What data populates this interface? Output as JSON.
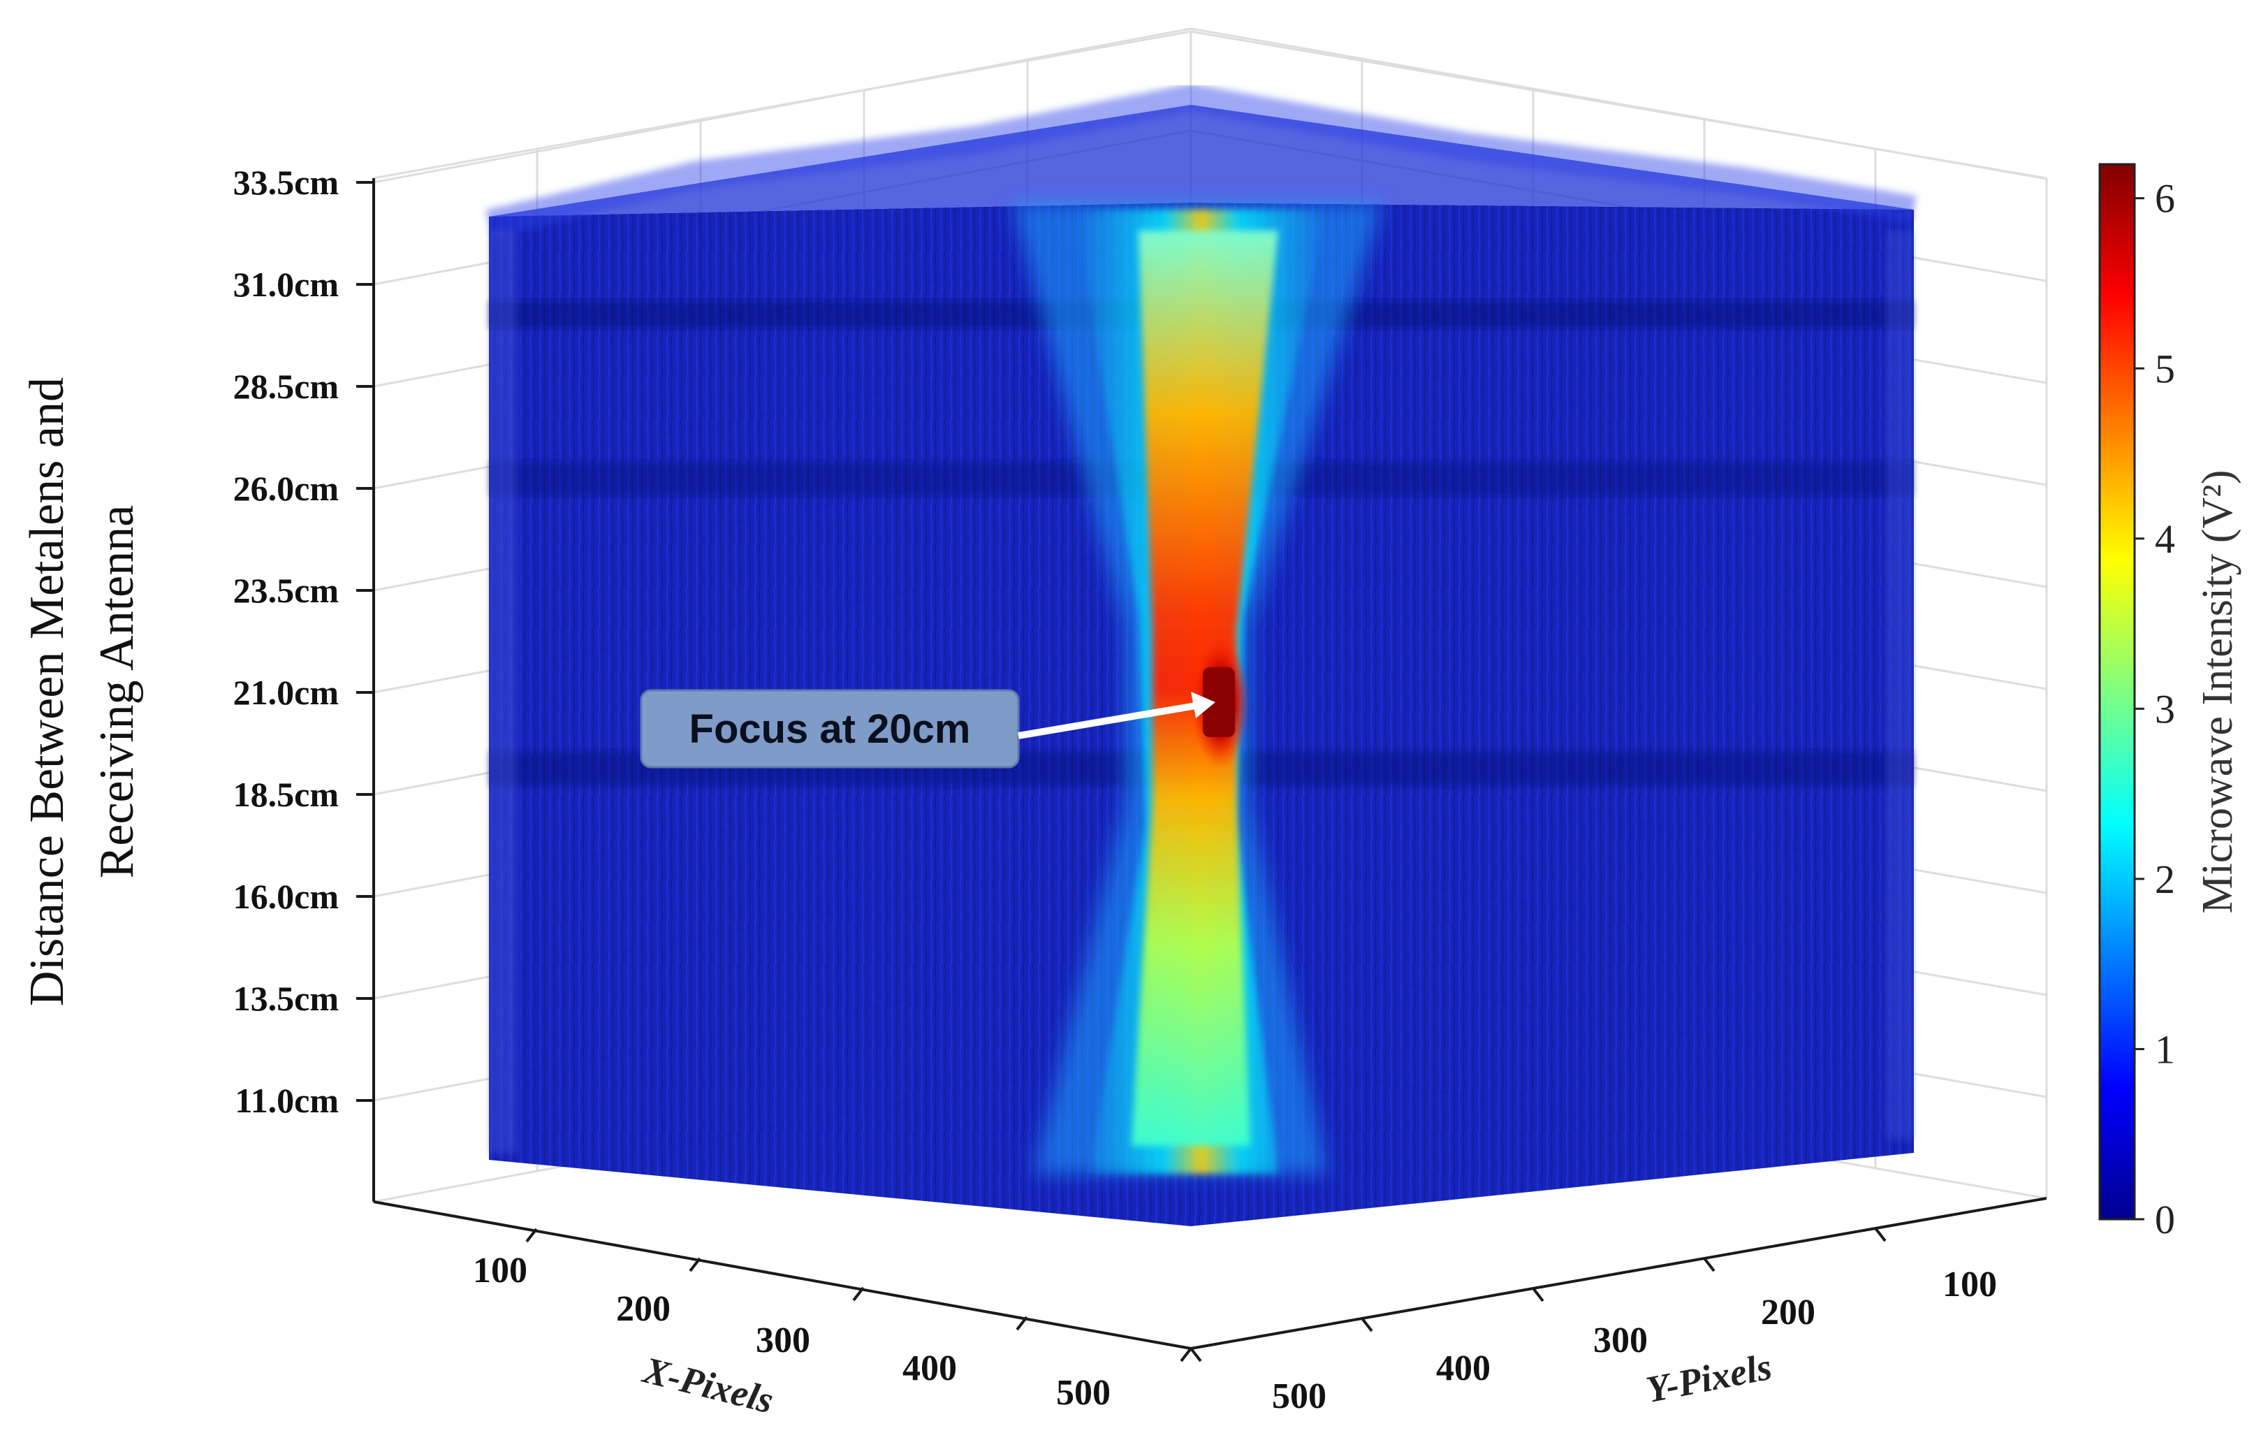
{
  "chart_data": {
    "type": "volume-3d",
    "zlabel_lines": [
      "Distance Between Metalens and",
      "Receiving Antenna"
    ],
    "xlabel": "X-Pixels",
    "ylabel": "Y-Pixels",
    "z_ticks": [
      "11.0cm",
      "13.5cm",
      "16.0cm",
      "18.5cm",
      "21.0cm",
      "23.5cm",
      "26.0cm",
      "28.5cm",
      "31.0cm",
      "33.5cm"
    ],
    "x_ticks": [
      "100",
      "200",
      "300",
      "400",
      "500"
    ],
    "y_ticks": [
      "100",
      "200",
      "300",
      "400",
      "500"
    ],
    "colorbar": {
      "label": "Microwave Intensity (V²)",
      "ticks": [
        "0",
        "1",
        "2",
        "3",
        "4",
        "5",
        "6"
      ],
      "range": [
        0,
        6.2
      ],
      "colormap": "jet"
    },
    "annotation": {
      "text": "Focus at 20cm",
      "focus_z_cm": 20
    },
    "peak_intensity": 6.2,
    "grid": true
  }
}
